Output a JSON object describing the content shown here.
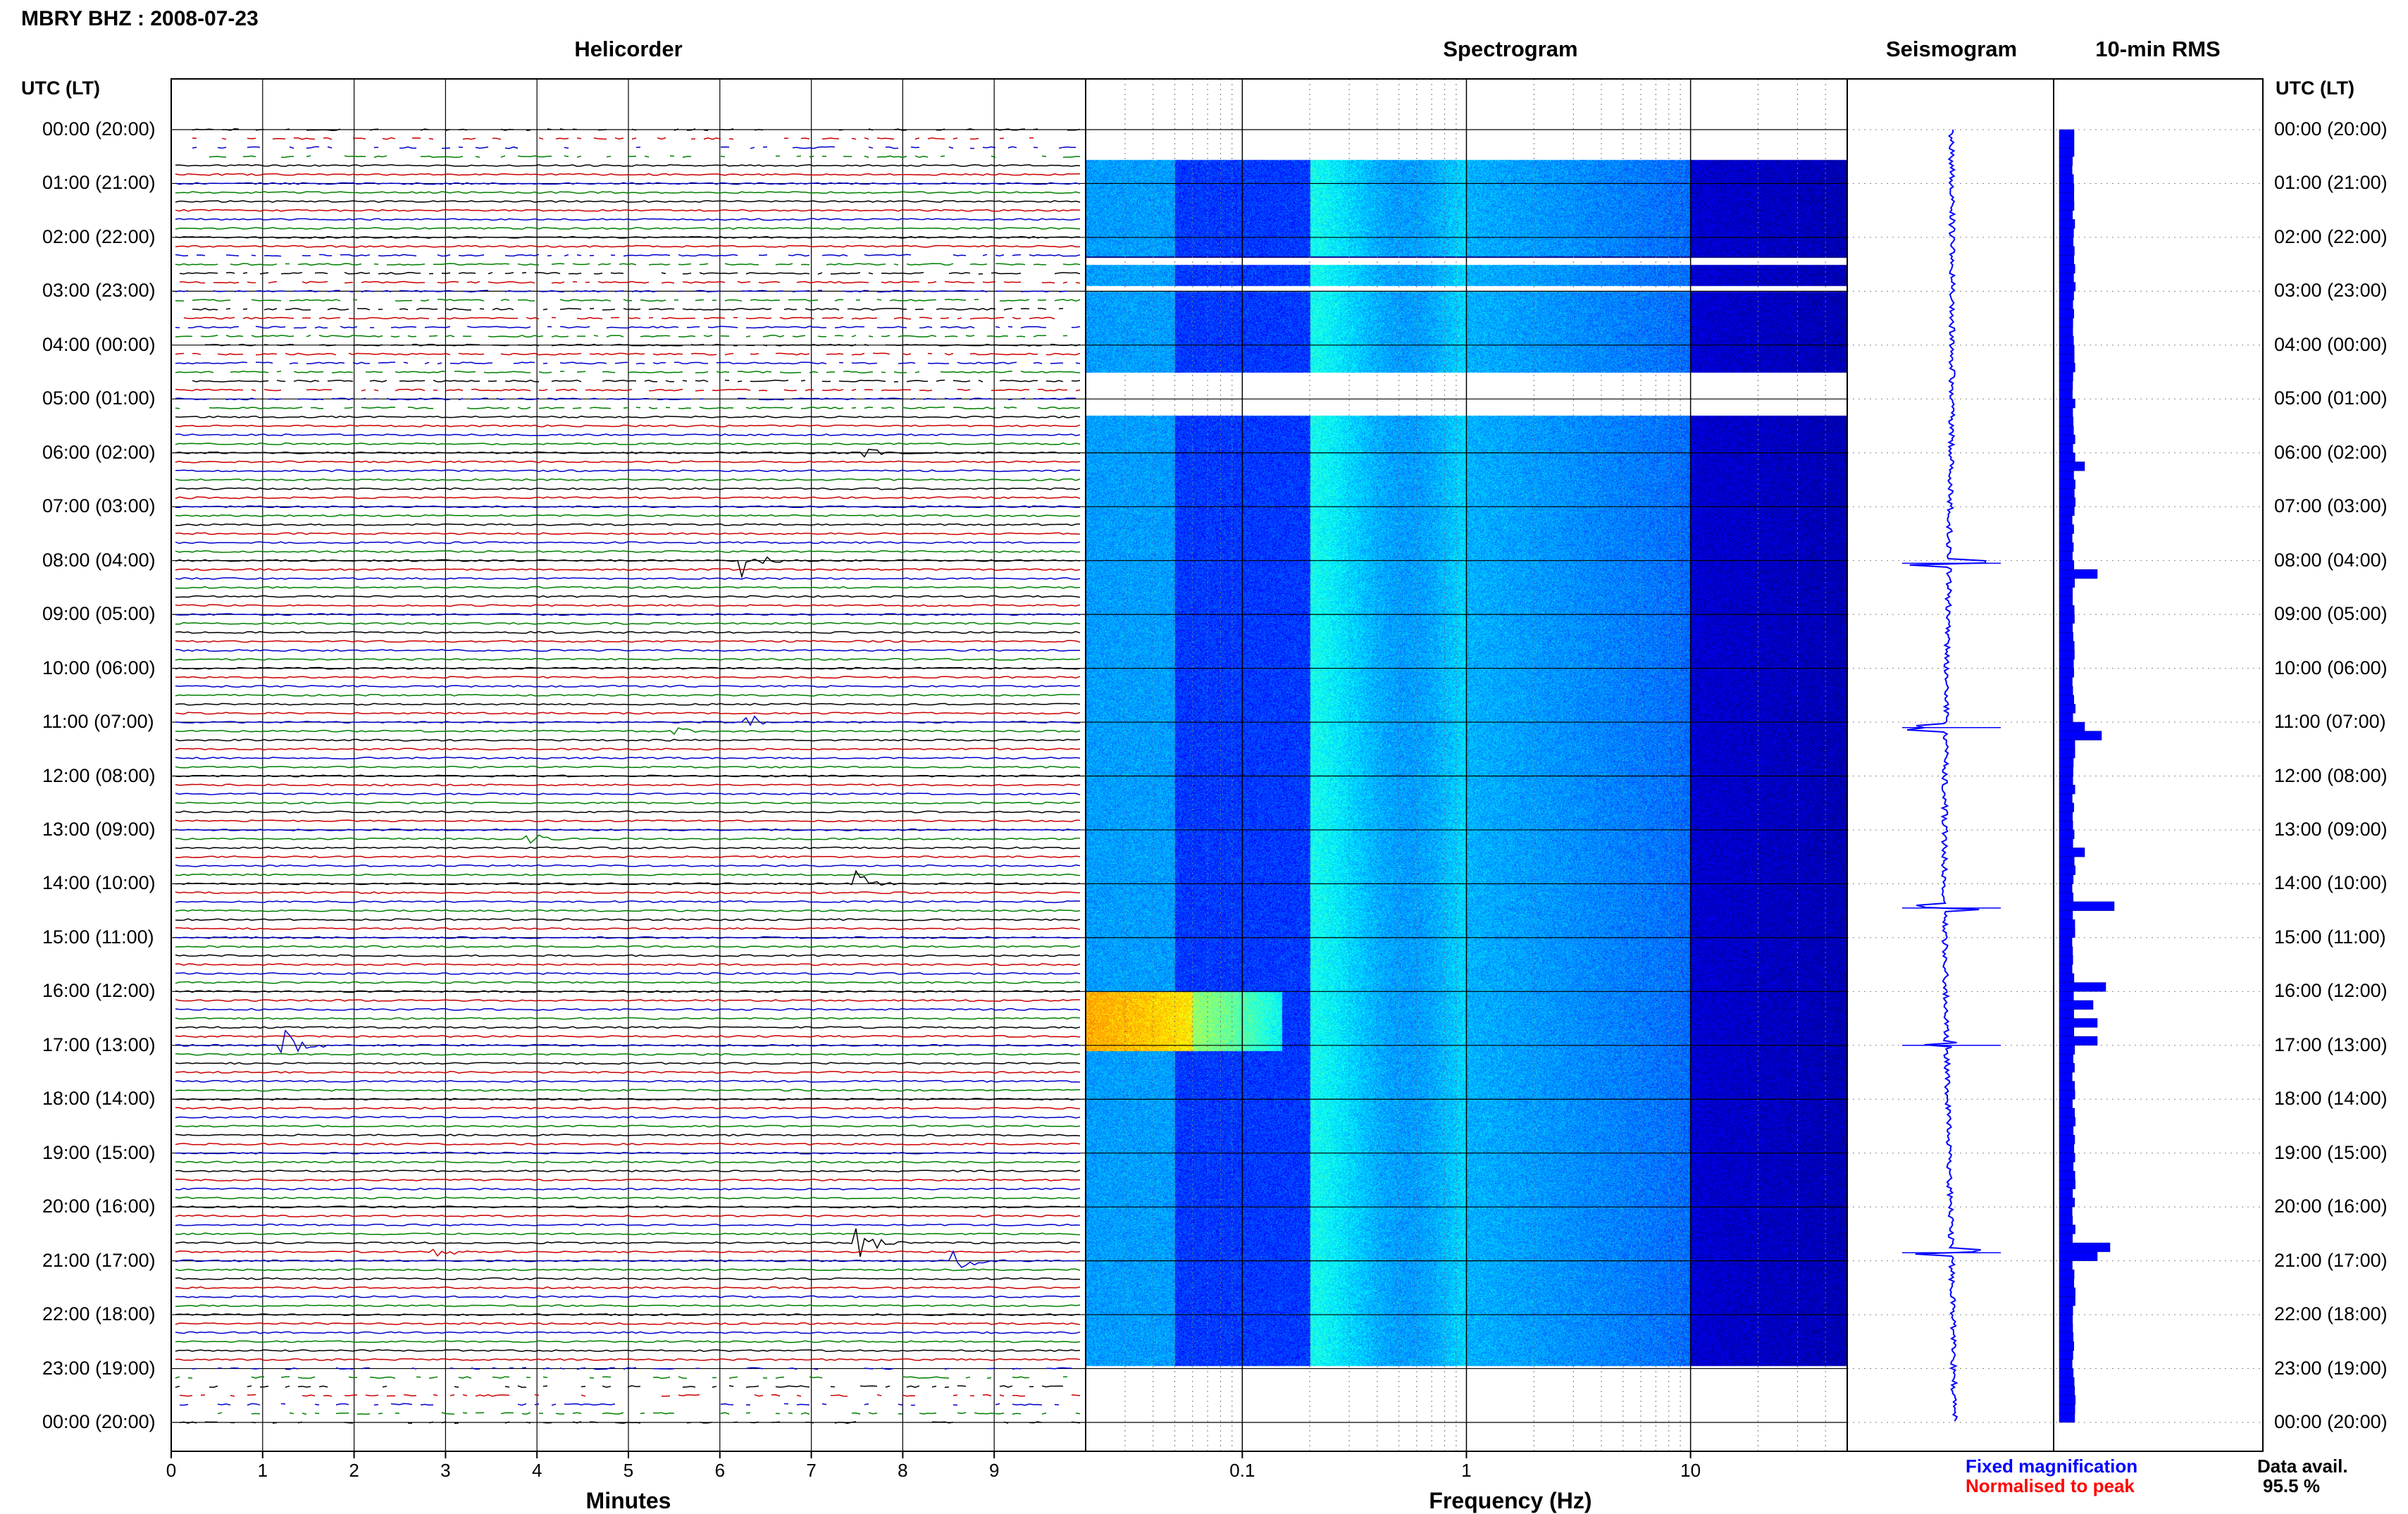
{
  "station": "MBRY BHZ : 2008-07-23",
  "panels": {
    "helicorder": "Helicorder",
    "spectrogram": "Spectrogram",
    "seismogram": "Seismogram",
    "rms": "10-min RMS"
  },
  "time_axis_header": "UTC (LT)",
  "time_labels": [
    "00:00 (20:00)",
    "01:00 (21:00)",
    "02:00 (22:00)",
    "03:00 (23:00)",
    "04:00 (00:00)",
    "05:00 (01:00)",
    "06:00 (02:00)",
    "07:00 (03:00)",
    "08:00 (04:00)",
    "09:00 (05:00)",
    "10:00 (06:00)",
    "11:00 (07:00)",
    "12:00 (08:00)",
    "13:00 (09:00)",
    "14:00 (10:00)",
    "15:00 (11:00)",
    "16:00 (12:00)",
    "17:00 (13:00)",
    "18:00 (14:00)",
    "19:00 (15:00)",
    "20:00 (16:00)",
    "21:00 (17:00)",
    "22:00 (18:00)",
    "23:00 (19:00)",
    "00:00 (20:00)"
  ],
  "x_axes": {
    "minutes_label": "Minutes",
    "minutes_ticks": [
      "0",
      "1",
      "2",
      "3",
      "4",
      "5",
      "6",
      "7",
      "8",
      "9"
    ],
    "frequency_label": "Frequency (Hz)",
    "frequency_ticks": [
      "0.1",
      "1",
      "10"
    ]
  },
  "legend": {
    "fixed": "Fixed magnification",
    "normalised": "Normalised to peak"
  },
  "data_availability": {
    "label": "Data avail.",
    "value": "95.5 %"
  },
  "colors": {
    "trace_cycle": [
      "#000000",
      "#cc0000",
      "#0000cc",
      "#008000"
    ],
    "seismogram": "#0000ff",
    "rms_bar": "#0000ff",
    "spectro_low": "#00008b",
    "spectro_mid": "#00bfff",
    "spectro_high": "#ffff00",
    "spectro_peak": "#ff3300"
  },
  "chart_data": [
    {
      "type": "line",
      "title": "Helicorder",
      "xlabel": "Minutes",
      "x_ticks": [
        0,
        1,
        2,
        3,
        4,
        5,
        6,
        7,
        8,
        9
      ],
      "xlim": [
        0,
        10
      ],
      "y_ticks": [
        "00:00 (20:00)",
        "01:00 (21:00)",
        "02:00 (22:00)",
        "03:00 (23:00)",
        "04:00 (00:00)",
        "05:00 (01:00)",
        "06:00 (02:00)",
        "07:00 (03:00)",
        "08:00 (04:00)",
        "09:00 (05:00)",
        "10:00 (06:00)",
        "11:00 (07:00)",
        "12:00 (08:00)",
        "13:00 (09:00)",
        "14:00 (10:00)",
        "15:00 (11:00)",
        "16:00 (12:00)",
        "17:00 (13:00)",
        "18:00 (14:00)",
        "19:00 (15:00)",
        "20:00 (16:00)",
        "21:00 (17:00)",
        "22:00 (18:00)",
        "23:00 (19:00)",
        "00:00 (20:00)"
      ],
      "events": [
        {
          "hour": 6.0,
          "minute": 7.6,
          "amplitude": 0.3
        },
        {
          "hour": 8.0,
          "minute": 6.25,
          "amplitude": 1.0
        },
        {
          "hour": 11.0,
          "minute": 6.3,
          "amplitude": 0.5
        },
        {
          "hour": 11.1,
          "minute": 5.5,
          "amplitude": 0.4
        },
        {
          "hour": 13.2,
          "minute": 3.9,
          "amplitude": 0.4
        },
        {
          "hour": 14.0,
          "minute": 7.5,
          "amplitude": 1.0
        },
        {
          "hour": 17.0,
          "minute": 1.25,
          "amplitude": 1.0
        },
        {
          "hour": 20.7,
          "minute": 7.5,
          "amplitude": 1.0
        },
        {
          "hour": 21.0,
          "minute": 8.6,
          "amplitude": 0.7
        },
        {
          "hour": 20.8,
          "minute": 2.9,
          "amplitude": 0.3
        }
      ]
    },
    {
      "type": "heatmap",
      "title": "Spectrogram",
      "xlabel": "Frequency (Hz)",
      "x_scale": "log",
      "xlim": [
        0.02,
        50
      ],
      "x_ticks": [
        0.1,
        1,
        10
      ],
      "y_hours": [
        0,
        24
      ],
      "data_gaps_hours": [
        [
          0,
          0.55
        ],
        [
          2.35,
          2.5
        ],
        [
          2.9,
          3.0
        ],
        [
          4.5,
          5.3
        ],
        [
          22.95,
          24
        ]
      ],
      "hotspot": {
        "hours": [
          16.0,
          17.1
        ],
        "freq_hz": [
          0.02,
          0.15
        ],
        "intensity": "high"
      }
    },
    {
      "type": "line",
      "title": "Seismogram",
      "legend": [
        "Fixed magnification"
      ],
      "spikes_hours": [
        8.05,
        11.1,
        14.45,
        17.0,
        20.85
      ]
    },
    {
      "type": "bar",
      "title": "10-min RMS",
      "orientation": "horizontal",
      "y_hours_step": 0.1667,
      "peaks": [
        {
          "hour": 6.1,
          "value": 0.6
        },
        {
          "hour": 8.1,
          "value": 0.9
        },
        {
          "hour": 11.0,
          "value": 0.6
        },
        {
          "hour": 11.2,
          "value": 1.0
        },
        {
          "hour": 13.4,
          "value": 0.6
        },
        {
          "hour": 14.4,
          "value": 1.3
        },
        {
          "hour": 15.9,
          "value": 1.1
        },
        {
          "hour": 16.1,
          "value": 0.8
        },
        {
          "hour": 16.5,
          "value": 0.9
        },
        {
          "hour": 16.9,
          "value": 0.9
        },
        {
          "hour": 20.7,
          "value": 1.2
        },
        {
          "hour": 20.9,
          "value": 0.9
        }
      ]
    }
  ]
}
